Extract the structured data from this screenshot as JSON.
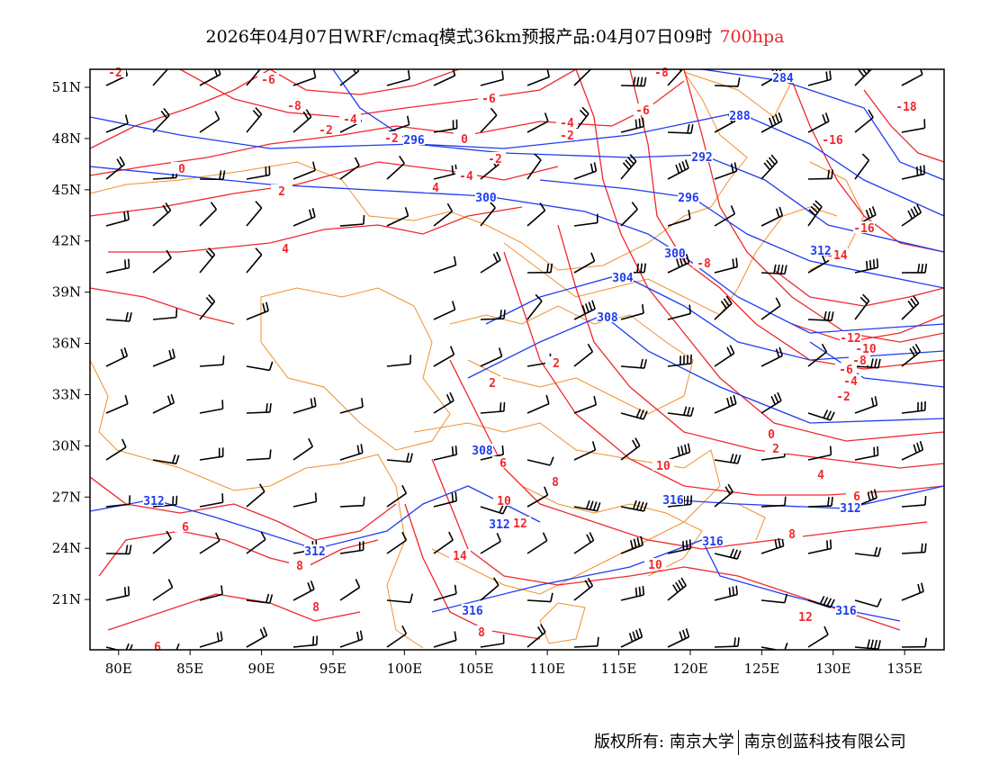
{
  "title": {
    "main": "2026年04月07日WRF/cmaq模式36km预报产品:04月07日09时",
    "level": "700hpa"
  },
  "axes": {
    "lon_ticks": [
      "80E",
      "85E",
      "90E",
      "95E",
      "100E",
      "105E",
      "110E",
      "115E",
      "120E",
      "125E",
      "130E",
      "135E"
    ],
    "lat_ticks": [
      "51N",
      "48N",
      "45N",
      "42N",
      "39N",
      "36N",
      "33N",
      "30N",
      "27N",
      "24N",
      "21N"
    ]
  },
  "colors": {
    "temperature": "#f0282d",
    "height": "#1f3cf0",
    "border": "#f0902c",
    "wind": "#000000"
  },
  "contour_labels": [
    {
      "field": "temperature",
      "value": "-2"
    },
    {
      "field": "temperature",
      "value": "-6"
    },
    {
      "field": "temperature",
      "value": "-8"
    },
    {
      "field": "temperature",
      "value": "-6"
    },
    {
      "field": "temperature",
      "value": "-4"
    },
    {
      "field": "temperature",
      "value": "-2"
    },
    {
      "field": "temperature",
      "value": "-2"
    },
    {
      "field": "temperature",
      "value": "0"
    },
    {
      "field": "temperature",
      "value": "-2"
    },
    {
      "field": "temperature",
      "value": "-4"
    },
    {
      "field": "temperature",
      "value": "4"
    },
    {
      "field": "temperature",
      "value": "0"
    },
    {
      "field": "temperature",
      "value": "2"
    },
    {
      "field": "temperature",
      "value": "4"
    },
    {
      "field": "temperature",
      "value": "-8"
    },
    {
      "field": "temperature",
      "value": "-6"
    },
    {
      "field": "temperature",
      "value": "-4"
    },
    {
      "field": "temperature",
      "value": "-2"
    },
    {
      "field": "temperature",
      "value": "-18"
    },
    {
      "field": "temperature",
      "value": "-16"
    },
    {
      "field": "temperature",
      "value": "-16"
    },
    {
      "field": "temperature",
      "value": "-14"
    },
    {
      "field": "temperature",
      "value": "-8"
    },
    {
      "field": "temperature",
      "value": "-12"
    },
    {
      "field": "temperature",
      "value": "-10"
    },
    {
      "field": "temperature",
      "value": "-8"
    },
    {
      "field": "temperature",
      "value": "-6"
    },
    {
      "field": "temperature",
      "value": "-4"
    },
    {
      "field": "temperature",
      "value": "-2"
    },
    {
      "field": "temperature",
      "value": "2"
    },
    {
      "field": "temperature",
      "value": "2"
    },
    {
      "field": "temperature",
      "value": "0"
    },
    {
      "field": "temperature",
      "value": "2"
    },
    {
      "field": "temperature",
      "value": "4"
    },
    {
      "field": "temperature",
      "value": "6"
    },
    {
      "field": "temperature",
      "value": "6"
    },
    {
      "field": "temperature",
      "value": "8"
    },
    {
      "field": "temperature",
      "value": "10"
    },
    {
      "field": "temperature",
      "value": "12"
    },
    {
      "field": "temperature",
      "value": "14"
    },
    {
      "field": "temperature",
      "value": "6"
    },
    {
      "field": "temperature",
      "value": "8"
    },
    {
      "field": "temperature",
      "value": "8"
    },
    {
      "field": "temperature",
      "value": "8"
    },
    {
      "field": "temperature",
      "value": "10"
    },
    {
      "field": "temperature",
      "value": "10"
    },
    {
      "field": "temperature",
      "value": "12"
    },
    {
      "field": "temperature",
      "value": "8"
    },
    {
      "field": "temperature",
      "value": "6"
    },
    {
      "field": "height",
      "value": "284"
    },
    {
      "field": "height",
      "value": "288"
    },
    {
      "field": "height",
      "value": "292"
    },
    {
      "field": "height",
      "value": "296"
    },
    {
      "field": "height",
      "value": "296"
    },
    {
      "field": "height",
      "value": "300"
    },
    {
      "field": "height",
      "value": "300"
    },
    {
      "field": "height",
      "value": "304"
    },
    {
      "field": "height",
      "value": "308"
    },
    {
      "field": "height",
      "value": "308"
    },
    {
      "field": "height",
      "value": "312"
    },
    {
      "field": "height",
      "value": "312"
    },
    {
      "field": "height",
      "value": "312"
    },
    {
      "field": "height",
      "value": "312"
    },
    {
      "field": "height",
      "value": "316"
    },
    {
      "field": "height",
      "value": "316"
    },
    {
      "field": "height",
      "value": "316"
    },
    {
      "field": "height",
      "value": "316"
    },
    {
      "field": "height",
      "value": "312"
    }
  ],
  "footer": {
    "copyright": "版权所有: 南京大学",
    "company": "南京创蓝科技有限公司"
  }
}
